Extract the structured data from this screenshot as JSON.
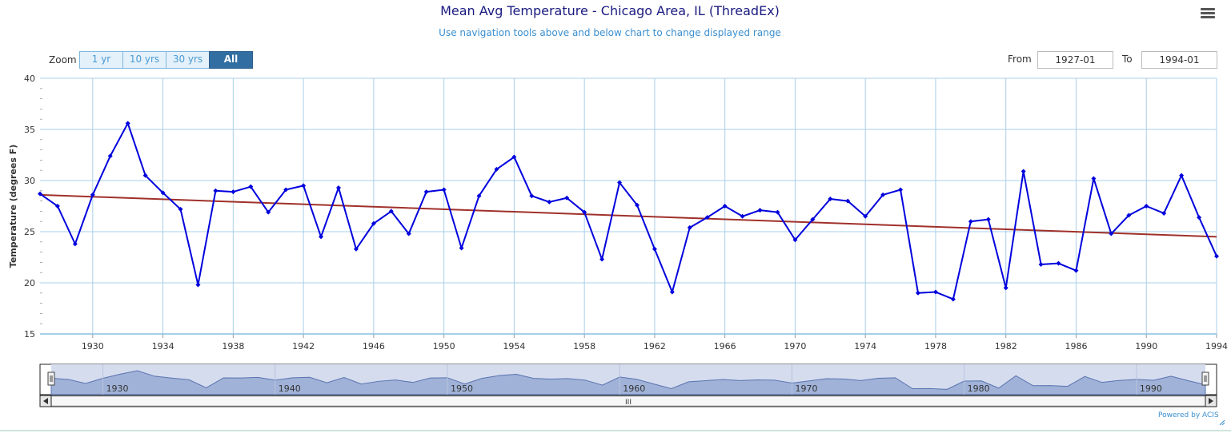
{
  "header": {
    "title": "Mean Avg Temperature - Chicago Area, IL (ThreadEx)",
    "subtitle": "Use navigation tools above and below chart to change displayed range",
    "menu_icon": "hamburger-menu-icon"
  },
  "zoom": {
    "label": "Zoom",
    "buttons": [
      {
        "label": "1 yr",
        "active": false
      },
      {
        "label": "10 yrs",
        "active": false
      },
      {
        "label": "30 yrs",
        "active": false
      },
      {
        "label": "All",
        "active": true
      }
    ]
  },
  "range": {
    "from_label": "From",
    "from_value": "1927-01",
    "to_label": "To",
    "to_value": "1994-01"
  },
  "chart_data": {
    "type": "line",
    "title": "Mean Avg Temperature - Chicago Area, IL (ThreadEx)",
    "ylabel": "Temperature (degrees F)",
    "xlabel": "",
    "xlim": [
      1927,
      1994
    ],
    "ylim": [
      15,
      40
    ],
    "y_ticks": [
      "15",
      "20",
      "25",
      "30",
      "35",
      "40"
    ],
    "x_ticks": [
      "1930",
      "1934",
      "1938",
      "1942",
      "1946",
      "1950",
      "1954",
      "1958",
      "1962",
      "1966",
      "1970",
      "1974",
      "1978",
      "1982",
      "1986",
      "1990",
      "1994"
    ],
    "grid": true,
    "series": [
      {
        "color": "#0000dd",
        "x": [
          1927,
          1928,
          1929,
          1930,
          1931,
          1932,
          1933,
          1934,
          1935,
          1936,
          1937,
          1938,
          1939,
          1940,
          1941,
          1942,
          1943,
          1944,
          1945,
          1946,
          1947,
          1948,
          1949,
          1950,
          1951,
          1952,
          1953,
          1954,
          1955,
          1956,
          1957,
          1958,
          1959,
          1960,
          1961,
          1962,
          1963,
          1964,
          1965,
          1966,
          1967,
          1968,
          1969,
          1970,
          1971,
          1972,
          1973,
          1974,
          1975,
          1976,
          1977,
          1978,
          1979,
          1980,
          1981,
          1982,
          1983,
          1984,
          1985,
          1986,
          1987,
          1988,
          1989,
          1990,
          1991,
          1992,
          1993,
          1994
        ],
        "values": [
          28.7,
          27.5,
          23.8,
          28.6,
          32.4,
          35.6,
          30.5,
          28.8,
          27.2,
          19.8,
          29.0,
          28.9,
          29.4,
          26.9,
          29.1,
          29.5,
          24.5,
          29.3,
          23.3,
          25.8,
          27.0,
          24.8,
          28.9,
          29.1,
          23.4,
          28.5,
          31.1,
          32.3,
          28.5,
          27.9,
          28.3,
          26.9,
          22.3,
          29.8,
          27.6,
          23.3,
          19.1,
          25.4,
          26.4,
          27.5,
          26.5,
          27.1,
          26.9,
          24.2,
          26.2,
          28.2,
          28.0,
          26.5,
          28.6,
          29.1,
          19.0,
          19.1,
          18.4,
          26.0,
          26.2,
          19.5,
          30.9,
          21.8,
          21.9,
          21.2,
          30.2,
          24.8,
          26.6,
          27.5,
          26.8,
          30.5,
          26.4,
          22.6
        ]
      },
      {
        "color": "#a0302a",
        "x": [
          1927,
          1994
        ],
        "values": [
          28.6,
          24.5
        ]
      }
    ]
  },
  "navigator": {
    "labels": [
      "1930",
      "1940",
      "1950",
      "1960",
      "1970",
      "1980",
      "1990"
    ],
    "scrollbar_grip": "III"
  },
  "footer": {
    "credit": "Powered by ACIS"
  }
}
